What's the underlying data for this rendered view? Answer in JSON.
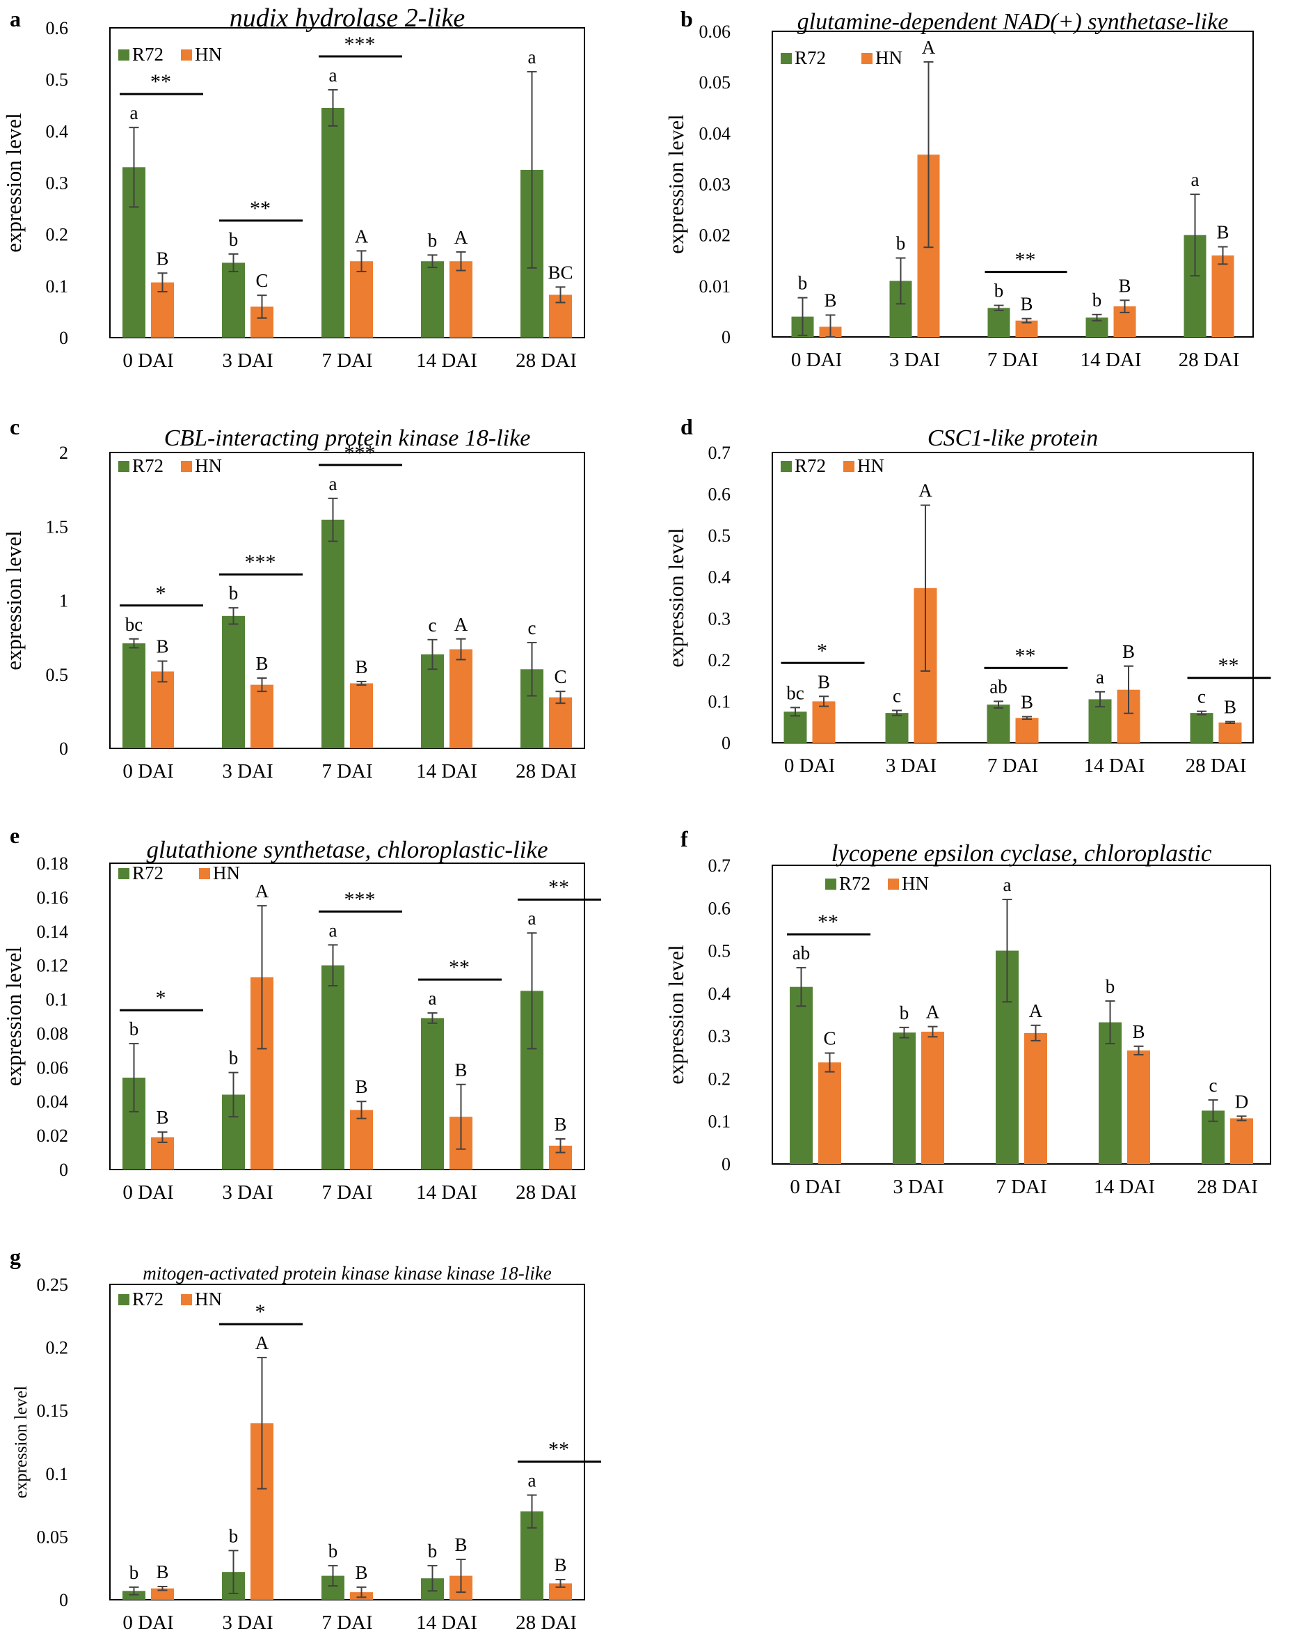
{
  "figure": {
    "colors": {
      "r72": "#548235",
      "hn": "#ED7D31",
      "axis": "#000000",
      "error": "#404040"
    },
    "panels": [
      {
        "panel_label": "a",
        "chart_data": {
          "type": "bar",
          "title": "nudix hydrolase 2-like",
          "ylabel": "expression level",
          "xlabel": "",
          "categories": [
            "0 DAI",
            "3 DAI",
            "7 DAI",
            "14 DAI",
            "28 DAI"
          ],
          "ylim": [
            0,
            0.6
          ],
          "yticks": [
            "0",
            "0.1",
            "0.2",
            "0.3",
            "0.4",
            "0.5",
            "0.6"
          ],
          "legend": "top-left",
          "series": [
            {
              "name": "R72",
              "values": [
                0.33,
                0.145,
                0.445,
                0.148,
                0.325
              ],
              "errors": [
                0.077,
                0.017,
                0.035,
                0.012,
                0.19
              ],
              "letters": [
                "a",
                "b",
                "a",
                "b",
                "a"
              ]
            },
            {
              "name": "HN",
              "values": [
                0.107,
                0.06,
                0.148,
                0.148,
                0.083
              ],
              "errors": [
                0.018,
                0.022,
                0.02,
                0.018,
                0.015
              ],
              "letters": [
                "B",
                "C",
                "A",
                "A",
                "BC"
              ]
            }
          ],
          "significance": [
            "**",
            "**",
            "***",
            "",
            ""
          ]
        }
      },
      {
        "panel_label": "b",
        "chart_data": {
          "type": "bar",
          "title": "glutamine-dependent NAD(+) synthetase-like",
          "ylabel": "expression level",
          "xlabel": "",
          "categories": [
            "0 DAI",
            "3 DAI",
            "7 DAI",
            "14 DAI",
            "28 DAI"
          ],
          "ylim": [
            0,
            0.06
          ],
          "yticks": [
            "0",
            "0.01",
            "0.02",
            "0.03",
            "0.04",
            "0.05",
            "0.06"
          ],
          "legend": "top-left",
          "series": [
            {
              "name": "R72",
              "values": [
                0.004,
                0.011,
                0.0057,
                0.0038,
                0.02
              ],
              "errors": [
                0.0037,
                0.0045,
                0.0005,
                0.0006,
                0.008
              ],
              "letters": [
                "b",
                "b",
                "b",
                "b",
                "a"
              ]
            },
            {
              "name": "HN",
              "values": [
                0.002,
                0.0358,
                0.0032,
                0.006,
                0.016
              ],
              "errors": [
                0.0023,
                0.0182,
                0.0004,
                0.0012,
                0.0017
              ],
              "letters": [
                "B",
                "A",
                "B",
                "B",
                "B"
              ]
            }
          ],
          "significance": [
            "",
            "",
            "**",
            "",
            ""
          ]
        }
      },
      {
        "panel_label": "c",
        "chart_data": {
          "type": "bar",
          "title": "CBL-interacting protein kinase 18-like",
          "ylabel": "expression level",
          "xlabel": "",
          "categories": [
            "0 DAI",
            "3 DAI",
            "7 DAI",
            "14 DAI",
            "28 DAI"
          ],
          "ylim": [
            0,
            2
          ],
          "yticks": [
            "0",
            "0.5",
            "1",
            "1.5",
            "2"
          ],
          "legend": "top-left",
          "series": [
            {
              "name": "R72",
              "values": [
                0.71,
                0.895,
                1.545,
                0.635,
                0.535
              ],
              "errors": [
                0.03,
                0.055,
                0.145,
                0.1,
                0.18
              ],
              "letters": [
                "bc",
                "b",
                "a",
                "c",
                "c"
              ]
            },
            {
              "name": "HN",
              "values": [
                0.52,
                0.43,
                0.44,
                0.67,
                0.345
              ],
              "errors": [
                0.07,
                0.045,
                0.012,
                0.07,
                0.04
              ],
              "letters": [
                "B",
                "B",
                "B",
                "A",
                "C"
              ]
            }
          ],
          "significance": [
            "*",
            "***",
            "***",
            "",
            ""
          ]
        }
      },
      {
        "panel_label": "d",
        "chart_data": {
          "type": "bar",
          "title": "CSC1-like protein",
          "ylabel": "expression level",
          "xlabel": "",
          "categories": [
            "0 DAI",
            "3 DAI",
            "7 DAI",
            "14 DAI",
            "28 DAI"
          ],
          "ylim": [
            0,
            0.7
          ],
          "yticks": [
            "0",
            "0.1",
            "0.2",
            "0.3",
            "0.4",
            "0.5",
            "0.6",
            "0.7"
          ],
          "legend": "top-left",
          "series": [
            {
              "name": "R72",
              "values": [
                0.075,
                0.072,
                0.092,
                0.105,
                0.072
              ],
              "errors": [
                0.01,
                0.006,
                0.008,
                0.018,
                0.004
              ],
              "letters": [
                "bc",
                "c",
                "ab",
                "a",
                "c"
              ]
            },
            {
              "name": "HN",
              "values": [
                0.1,
                0.373,
                0.06,
                0.128,
                0.049
              ],
              "errors": [
                0.012,
                0.2,
                0.003,
                0.057,
                0.002
              ],
              "letters": [
                "B",
                "A",
                "B",
                "B",
                "B"
              ]
            }
          ],
          "significance": [
            "*",
            "",
            "**",
            "",
            "**"
          ]
        }
      },
      {
        "panel_label": "e",
        "chart_data": {
          "type": "bar",
          "title": "glutathione synthetase, chloroplastic-like",
          "ylabel": "expression level",
          "xlabel": "",
          "categories": [
            "0 DAI",
            "3 DAI",
            "7 DAI",
            "14 DAI",
            "28 DAI"
          ],
          "ylim": [
            0,
            0.18
          ],
          "yticks": [
            "0",
            "0.02",
            "0.04",
            "0.06",
            "0.08",
            "0.1",
            "0.12",
            "0.14",
            "0.16",
            "0.18"
          ],
          "legend": "top-left",
          "series": [
            {
              "name": "R72",
              "values": [
                0.054,
                0.044,
                0.12,
                0.089,
                0.105
              ],
              "errors": [
                0.02,
                0.013,
                0.012,
                0.003,
                0.034
              ],
              "letters": [
                "b",
                "b",
                "a",
                "a",
                "a"
              ]
            },
            {
              "name": "HN",
              "values": [
                0.019,
                0.113,
                0.035,
                0.031,
                0.014
              ],
              "errors": [
                0.003,
                0.042,
                0.005,
                0.019,
                0.004
              ],
              "letters": [
                "B",
                "A",
                "B",
                "B",
                "B"
              ]
            }
          ],
          "significance": [
            "*",
            "",
            "***",
            "**",
            "**"
          ]
        }
      },
      {
        "panel_label": "f",
        "chart_data": {
          "type": "bar",
          "title": "lycopene epsilon cyclase, chloroplastic",
          "ylabel": "expression level",
          "xlabel": "",
          "categories": [
            "0 DAI",
            "3 DAI",
            "7 DAI",
            "14 DAI",
            "28 DAI"
          ],
          "ylim": [
            0,
            0.7
          ],
          "yticks": [
            "0",
            "0.1",
            "0.2",
            "0.3",
            "0.4",
            "0.5",
            "0.6",
            "0.7"
          ],
          "legend": "top-left",
          "series": [
            {
              "name": "R72",
              "values": [
                0.415,
                0.308,
                0.5,
                0.332,
                0.125
              ],
              "errors": [
                0.045,
                0.012,
                0.12,
                0.05,
                0.025
              ],
              "letters": [
                "ab",
                "b",
                "a",
                "b",
                "c"
              ]
            },
            {
              "name": "HN",
              "values": [
                0.238,
                0.31,
                0.307,
                0.266,
                0.107
              ],
              "errors": [
                0.022,
                0.012,
                0.018,
                0.01,
                0.005
              ],
              "letters": [
                "C",
                "A",
                "A",
                "B",
                "D"
              ]
            }
          ],
          "significance": [
            "**",
            "",
            "",
            "",
            ""
          ]
        }
      },
      {
        "panel_label": "g",
        "chart_data": {
          "type": "bar",
          "title": "mitogen-activated protein kinase kinase kinase 18-like",
          "ylabel": "expression level",
          "xlabel": "",
          "categories": [
            "0 DAI",
            "3 DAI",
            "7 DAI",
            "14 DAI",
            "28 DAI"
          ],
          "ylim": [
            0,
            0.25
          ],
          "yticks": [
            "0",
            "0.05",
            "0.1",
            "0.15",
            "0.2",
            "0.25"
          ],
          "legend": "top-left",
          "series": [
            {
              "name": "R72",
              "values": [
                0.007,
                0.022,
                0.019,
                0.017,
                0.07
              ],
              "errors": [
                0.003,
                0.017,
                0.008,
                0.01,
                0.013
              ],
              "letters": [
                "b",
                "b",
                "b",
                "b",
                "a"
              ]
            },
            {
              "name": "HN",
              "values": [
                0.009,
                0.14,
                0.006,
                0.019,
                0.013
              ],
              "errors": [
                0.0015,
                0.052,
                0.004,
                0.013,
                0.003
              ],
              "letters": [
                "B",
                "A",
                "B",
                "B",
                "B"
              ]
            }
          ],
          "significance": [
            "",
            "*",
            "",
            "",
            "**"
          ]
        }
      }
    ]
  }
}
